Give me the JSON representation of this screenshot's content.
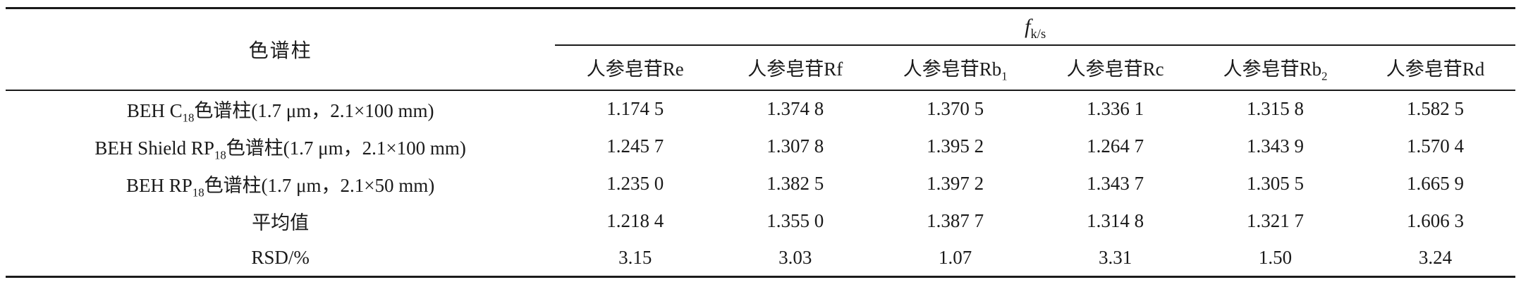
{
  "table": {
    "corner_header": "色谱柱",
    "group_header": {
      "base": "f",
      "sub": "k/s"
    },
    "columns": [
      {
        "pre": "人参皂苷Re",
        "sub": ""
      },
      {
        "pre": "人参皂苷Rf",
        "sub": ""
      },
      {
        "pre": "人参皂苷Rb",
        "sub": "1"
      },
      {
        "pre": "人参皂苷Rc",
        "sub": ""
      },
      {
        "pre": "人参皂苷Rb",
        "sub": "2"
      },
      {
        "pre": "人参皂苷Rd",
        "sub": ""
      }
    ],
    "rows": [
      {
        "label": {
          "pre": "BEH C",
          "sub": "18",
          "post": "色谱柱(1.7 μm，2.1×100 mm)"
        },
        "values": [
          "1.174 5",
          "1.374 8",
          "1.370 5",
          "1.336 1",
          "1.315 8",
          "1.582 5"
        ]
      },
      {
        "label": {
          "pre": "BEH Shield RP",
          "sub": "18",
          "post": "色谱柱(1.7 μm，2.1×100 mm)"
        },
        "values": [
          "1.245 7",
          "1.307 8",
          "1.395 2",
          "1.264 7",
          "1.343 9",
          "1.570 4"
        ]
      },
      {
        "label": {
          "pre": "BEH RP",
          "sub": "18",
          "post": "色谱柱(1.7 μm，2.1×50 mm)"
        },
        "values": [
          "1.235 0",
          "1.382 5",
          "1.397 2",
          "1.343 7",
          "1.305 5",
          "1.665 9"
        ]
      },
      {
        "label": {
          "pre": "平均值",
          "sub": "",
          "post": ""
        },
        "values": [
          "1.218 4",
          "1.355 0",
          "1.387 7",
          "1.314 8",
          "1.321 7",
          "1.606 3"
        ]
      },
      {
        "label": {
          "pre": "RSD/%",
          "sub": "",
          "post": ""
        },
        "values": [
          "3.15",
          "3.03",
          "1.07",
          "3.31",
          "1.50",
          "3.24"
        ]
      }
    ],
    "colors": {
      "text": "#1a1a1a",
      "rule": "#1a1a1a",
      "background": "#ffffff"
    }
  }
}
